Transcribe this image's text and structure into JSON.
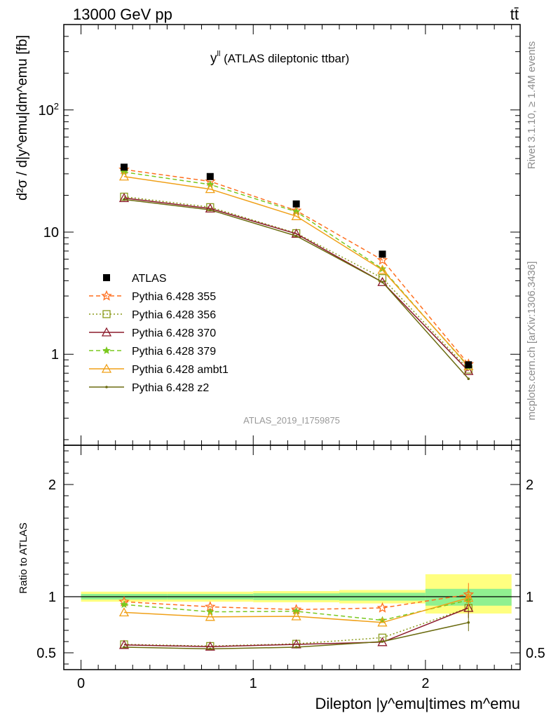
{
  "header": {
    "left": "13000 GeV pp",
    "right": "tt̄"
  },
  "side_labels": {
    "rivet": "Rivet 3.1.10, ≥ 1.4M events",
    "mcplots": "mcplots.cern.ch [arXiv:1306.3436]"
  },
  "colors": {
    "ATLAS": "#000000",
    "p355": "#ff6f1f",
    "p356": "#8a9a1a",
    "p370": "#8b1a2b",
    "p379": "#7ac81e",
    "ambt1": "#f0a018",
    "z2": "#6b6b10",
    "band_yellow": "#ffff80",
    "band_green": "#90f090"
  },
  "chart_data": {
    "type": "line",
    "title": "y^ll (ATLAS dileptonic ttbar)",
    "title_main": "y",
    "title_sup": "ll",
    "title_rest": " (ATLAS dileptonic ttbar)",
    "analysis_id": "ATLAS_2019_I1759875",
    "xlabel": "Dilepton |y^emu|times m^emu",
    "ylabel": "d²σ / d|y^emu|dm^emu [fb]",
    "ratio_ylabel": "Ratio to ATLAS",
    "xlim": [
      -0.1,
      2.55
    ],
    "ylim": [
      0.18,
      500
    ],
    "yscale": "log",
    "ratio_ylim": [
      0.35,
      2.35
    ],
    "x_ticks": [
      "0",
      "1",
      "2"
    ],
    "y_ticks": [
      "1",
      "10",
      "10²"
    ],
    "ratio_ticks": [
      "0.5",
      "1",
      "2"
    ],
    "x": [
      0.25,
      0.75,
      1.25,
      1.75,
      2.25
    ],
    "bins": [
      [
        0,
        0.5
      ],
      [
        0.5,
        1.0
      ],
      [
        1.0,
        1.5
      ],
      [
        1.5,
        2.0
      ],
      [
        2.0,
        2.5
      ]
    ],
    "data": {
      "name": "ATLAS",
      "values": [
        34.0,
        28.5,
        17.0,
        6.6,
        0.82
      ]
    },
    "bands": {
      "yellow": [
        [
          0.955,
          1.045
        ],
        [
          0.955,
          1.045
        ],
        [
          0.95,
          1.05
        ],
        [
          0.94,
          1.06
        ],
        [
          0.85,
          1.2
        ]
      ],
      "green": [
        [
          0.975,
          1.025
        ],
        [
          0.975,
          1.025
        ],
        [
          0.97,
          1.03
        ],
        [
          0.965,
          1.035
        ],
        [
          0.92,
          1.07
        ]
      ]
    },
    "series": [
      {
        "name": "Pythia 6.428 355",
        "key": "p355",
        "marker": "star-open",
        "dash": "6,4",
        "values": [
          32.5,
          26.0,
          15.0,
          5.9,
          0.83
        ],
        "ratio": [
          0.955,
          0.91,
          0.885,
          0.9,
          1.02
        ]
      },
      {
        "name": "Pythia 6.428 356",
        "key": "p356",
        "marker": "square-open",
        "dash": "2,3",
        "values": [
          19.5,
          16.0,
          9.8,
          4.2,
          0.75
        ],
        "ratio": [
          0.575,
          0.56,
          0.58,
          0.635,
          0.9
        ]
      },
      {
        "name": "Pythia 6.428 370",
        "key": "p370",
        "marker": "triangle-open",
        "dash": "",
        "values": [
          19.0,
          15.6,
          9.7,
          3.9,
          0.73
        ],
        "ratio": [
          0.57,
          0.555,
          0.575,
          0.595,
          0.9
        ]
      },
      {
        "name": "Pythia 6.428 379",
        "key": "p379",
        "marker": "star-filled",
        "dash": "6,4",
        "values": [
          31.0,
          24.5,
          14.7,
          5.0,
          0.79
        ],
        "ratio": [
          0.93,
          0.865,
          0.87,
          0.79,
          0.97
        ]
      },
      {
        "name": "Pythia 6.428 ambt1",
        "key": "ambt1",
        "marker": "triangle-open",
        "dash": "",
        "values": [
          28.5,
          22.5,
          13.5,
          4.9,
          0.8
        ],
        "ratio": [
          0.86,
          0.82,
          0.825,
          0.77,
          0.99
        ]
      },
      {
        "name": "Pythia 6.428 z2",
        "key": "z2",
        "marker": "dot",
        "dash": "",
        "values": [
          18.5,
          15.2,
          9.3,
          3.9,
          0.63
        ],
        "ratio": [
          0.55,
          0.535,
          0.55,
          0.6,
          0.77
        ]
      }
    ]
  }
}
